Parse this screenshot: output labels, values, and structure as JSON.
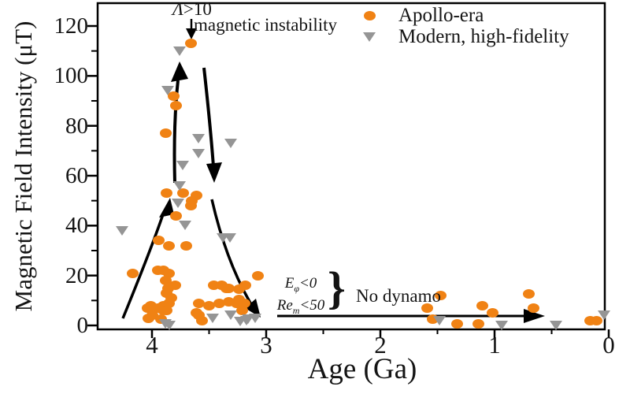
{
  "figure": {
    "x_axis": {
      "label": "Age (Ga)",
      "ticks": [
        4,
        3,
        2,
        1,
        0
      ]
    },
    "y_axis": {
      "label": "Magnetic Field Intensity (μT)",
      "ticks": [
        0,
        20,
        40,
        60,
        80,
        100,
        120
      ]
    }
  },
  "legend": {
    "items": [
      {
        "label": "Apollo-era",
        "marker": "circle",
        "color": "#F08214"
      },
      {
        "label": "Modern, high-fidelity",
        "marker": "triangle-down",
        "color": "#959595"
      }
    ]
  },
  "annotations": {
    "instability": {
      "symbol": "Λ",
      "condition": ">10",
      "text": "magnetic instability"
    },
    "no_dynamo": {
      "cond1": {
        "base": "E",
        "sub": "φ",
        "rest": "<0"
      },
      "cond2": {
        "base": "Re",
        "sub": "m",
        "rest": "<50"
      },
      "brace": "}",
      "label": "No dynamo"
    }
  },
  "chart_data": {
    "type": "scatter",
    "title": "",
    "xlabel": "Age (Ga)",
    "ylabel": "Magnetic Field Intensity (μT)",
    "xlim": [
      4.5,
      0
    ],
    "x_axis_reversed": true,
    "ylim": [
      0,
      130
    ],
    "grid": false,
    "legend_position": "top-right",
    "series": [
      {
        "name": "Apollo-era",
        "marker": "circle",
        "color": "#F08214",
        "points": [
          [
            3.66,
            113
          ],
          [
            3.81,
            92
          ],
          [
            3.79,
            88
          ],
          [
            3.88,
            77
          ],
          [
            3.87,
            53
          ],
          [
            3.73,
            53
          ],
          [
            3.61,
            52
          ],
          [
            3.65,
            50
          ],
          [
            3.66,
            48
          ],
          [
            3.79,
            44
          ],
          [
            3.94,
            34
          ],
          [
            3.85,
            32
          ],
          [
            3.7,
            32
          ],
          [
            4.17,
            21
          ],
          [
            3.95,
            22
          ],
          [
            3.9,
            22
          ],
          [
            3.85,
            21
          ],
          [
            3.88,
            18
          ],
          [
            3.8,
            16
          ],
          [
            3.86,
            15
          ],
          [
            3.87,
            13
          ],
          [
            3.83,
            11
          ],
          [
            3.85,
            9
          ],
          [
            3.9,
            8
          ],
          [
            4.01,
            8
          ],
          [
            4.04,
            7
          ],
          [
            3.95,
            7
          ],
          [
            3.9,
            6
          ],
          [
            3.87,
            6
          ],
          [
            4.0,
            4
          ],
          [
            4.03,
            3
          ],
          [
            3.92,
            2.5
          ],
          [
            3.59,
            9
          ],
          [
            3.61,
            5
          ],
          [
            3.59,
            4
          ],
          [
            3.56,
            2
          ],
          [
            3.5,
            8
          ],
          [
            3.41,
            9
          ],
          [
            3.46,
            16
          ],
          [
            3.39,
            16
          ],
          [
            3.35,
            15
          ],
          [
            3.33,
            15
          ],
          [
            3.24,
            14.5
          ],
          [
            3.18,
            16
          ],
          [
            3.33,
            9.5
          ],
          [
            3.26,
            9
          ],
          [
            3.24,
            10.5
          ],
          [
            3.19,
            9
          ],
          [
            3.21,
            6
          ],
          [
            3.07,
            20
          ],
          [
            1.59,
            7
          ],
          [
            1.54,
            2.5
          ],
          [
            1.47,
            12
          ],
          [
            1.33,
            0.5
          ],
          [
            1.14,
            0.5
          ],
          [
            1.11,
            8
          ],
          [
            1.02,
            5
          ],
          [
            0.7,
            12.5
          ],
          [
            0.66,
            7
          ],
          [
            0.16,
            2
          ],
          [
            0.11,
            2
          ]
        ]
      },
      {
        "name": "Modern, high-fidelity",
        "marker": "triangle-down",
        "color": "#959595",
        "points": [
          [
            3.76,
            110
          ],
          [
            3.86,
            94
          ],
          [
            3.59,
            75
          ],
          [
            3.31,
            73
          ],
          [
            3.59,
            69
          ],
          [
            3.73,
            64
          ],
          [
            3.76,
            56
          ],
          [
            3.77,
            49
          ],
          [
            3.71,
            40
          ],
          [
            4.26,
            38
          ],
          [
            3.38,
            35
          ],
          [
            3.32,
            35
          ],
          [
            3.47,
            3
          ],
          [
            3.31,
            4
          ],
          [
            3.23,
            1.5
          ],
          [
            3.17,
            2
          ],
          [
            3.16,
            2.5
          ],
          [
            3.1,
            3
          ],
          [
            3.88,
            0.5
          ],
          [
            3.85,
            0
          ],
          [
            1.48,
            2
          ],
          [
            0.94,
            0
          ],
          [
            0.46,
            0
          ],
          [
            0.04,
            4
          ]
        ]
      }
    ],
    "annotations": [
      "Λ>10 magnetic instability: down arrow pointing at peak datum (~3.66 Ga, ~113 μT)",
      "Rise and fall trend arrows around the 4–3 Ga cluster",
      "Eφ<0, Rem<50 } No dynamo: horizontal arrow spanning ~2.9 to ~0.6 Ga near 4 μT"
    ]
  }
}
